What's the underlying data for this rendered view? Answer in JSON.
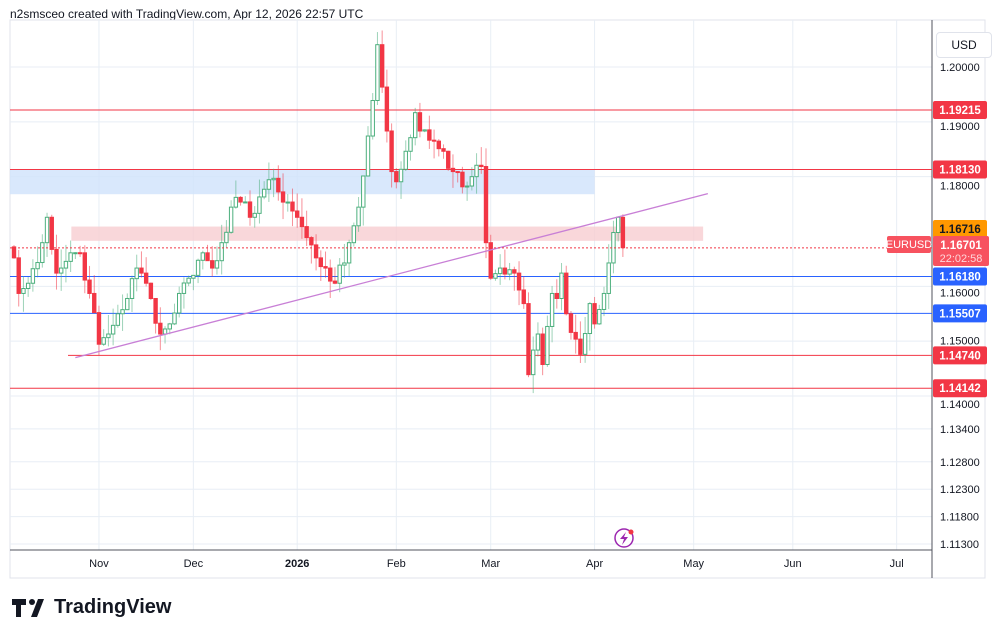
{
  "header": {
    "title": "n2smsceo created with TradingView.com, Apr 12, 2026 22:57 UTC"
  },
  "currency": "USD",
  "brand": "TradingView",
  "colors": {
    "up": "#4caf7d",
    "down": "#f23645",
    "blue": "#2962ff",
    "orange": "#ff9800",
    "trend": "#c87fd6",
    "grid": "#e8eef5"
  },
  "chart_data": {
    "type": "candlestick",
    "symbol": "EURUSD",
    "y_ticks": [
      "1.20000",
      "1.19000",
      "1.18000",
      "1.16000",
      "1.15000",
      "1.14000",
      "1.13400",
      "1.12800",
      "1.12300",
      "1.11800",
      "1.11300"
    ],
    "y_tick_values": [
      1.2,
      1.19,
      1.18,
      1.16,
      1.15,
      1.14,
      1.134,
      1.128,
      1.123,
      1.118,
      1.113
    ],
    "x_ticks": [
      "Nov",
      "Dec",
      "2026",
      "Feb",
      "Mar",
      "Apr",
      "May",
      "Jun",
      "Jul"
    ],
    "x_tick_index": [
      18,
      38,
      60,
      81,
      101,
      123,
      144,
      165,
      187
    ],
    "candle_count": 130,
    "close_anchors": [
      [
        0,
        1.16519
      ],
      [
        1,
        1.1587
      ],
      [
        3,
        1.16056
      ],
      [
        6,
        1.16796
      ],
      [
        7,
        1.17259
      ],
      [
        9,
        1.16241
      ],
      [
        10,
        1.16333
      ],
      [
        12,
        1.16611
      ],
      [
        14,
        1.16611
      ],
      [
        16,
        1.1587
      ],
      [
        18,
        1.14944
      ],
      [
        20,
        1.1513
      ],
      [
        22,
        1.155
      ],
      [
        24,
        1.15778
      ],
      [
        26,
        1.16333
      ],
      [
        27,
        1.16241
      ],
      [
        29,
        1.15778
      ],
      [
        31,
        1.1513
      ],
      [
        33,
        1.15315
      ],
      [
        35,
        1.1587
      ],
      [
        37,
        1.16148
      ],
      [
        40,
        1.16611
      ],
      [
        42,
        1.16333
      ],
      [
        44,
        1.16796
      ],
      [
        46,
        1.17444
      ],
      [
        48,
        1.17537
      ],
      [
        50,
        1.17259
      ],
      [
        52,
        1.1763
      ],
      [
        54,
        1.17944
      ],
      [
        56,
        1.17722
      ],
      [
        58,
        1.17537
      ],
      [
        60,
        1.17259
      ],
      [
        62,
        1.16889
      ],
      [
        64,
        1.16519
      ],
      [
        66,
        1.16333
      ],
      [
        68,
        1.16056
      ],
      [
        70,
        1.16426
      ],
      [
        71,
        1.16796
      ],
      [
        73,
        1.17444
      ],
      [
        75,
        1.18741
      ],
      [
        76,
        1.19389
      ],
      [
        77,
        1.20407
      ],
      [
        79,
        1.18833
      ],
      [
        80,
        1.18093
      ],
      [
        81,
        1.17907
      ],
      [
        83,
        1.18463
      ],
      [
        85,
        1.19167
      ],
      [
        86,
        1.18833
      ],
      [
        89,
        1.18648
      ],
      [
        91,
        1.18463
      ],
      [
        93,
        1.18093
      ],
      [
        95,
        1.17815
      ],
      [
        97,
        1.18
      ],
      [
        99,
        1.18185
      ],
      [
        100,
        1.16796
      ],
      [
        101,
        1.16148
      ],
      [
        103,
        1.16333
      ],
      [
        106,
        1.16241
      ],
      [
        108,
        1.15685
      ],
      [
        109,
        1.14389
      ],
      [
        111,
        1.1513
      ],
      [
        112,
        1.14574
      ],
      [
        114,
        1.1587
      ],
      [
        115,
        1.15778
      ],
      [
        116,
        1.16241
      ],
      [
        117,
        1.155
      ],
      [
        119,
        1.15037
      ],
      [
        120,
        1.14759
      ],
      [
        122,
        1.15685
      ],
      [
        123,
        1.15315
      ],
      [
        125,
        1.1587
      ],
      [
        126,
        1.16426
      ],
      [
        127,
        1.16981
      ],
      [
        128,
        1.17259
      ],
      [
        129,
        1.16704
      ]
    ],
    "levels": [
      {
        "price": "1.19215",
        "value": 1.19215,
        "color": "#f23645"
      },
      {
        "price": "1.18130",
        "value": 1.1813,
        "color": "#f23645"
      },
      {
        "price": "1.16716",
        "value": 1.16716,
        "color": "#ff9800"
      },
      {
        "price": "1.16180",
        "value": 1.1618,
        "color": "#2962ff"
      },
      {
        "price": "1.15507",
        "value": 1.15507,
        "color": "#2962ff"
      },
      {
        "price": "1.14740",
        "value": 1.1474,
        "color": "#f23645"
      },
      {
        "price": "1.14142",
        "value": 1.14142,
        "color": "#f23645"
      }
    ],
    "current": {
      "symbol": "EURUSD",
      "price": "1.16701",
      "value": 1.16701,
      "countdown": "22:02:58"
    },
    "zones": [
      {
        "name": "supply-zone",
        "from": 1.1813,
        "to": 1.1768,
        "color": "#cfe2fb",
        "start": 0,
        "end": 123
      },
      {
        "name": "resistance-zone",
        "from": 1.1709,
        "to": 1.1683,
        "color": "#f8cdd1",
        "start": 13,
        "end": 146
      }
    ],
    "trendline": {
      "start": [
        13,
        1.147
      ],
      "end": [
        147,
        1.1769
      ]
    }
  }
}
